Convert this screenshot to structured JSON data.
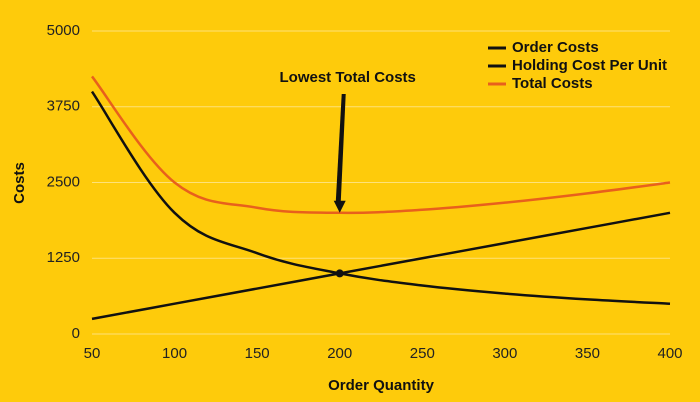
{
  "chart_data": {
    "type": "line",
    "x_label": "Order Quantity",
    "y_label": "Costs",
    "annotation": "Lowest Total Costs",
    "x": [
      50,
      100,
      150,
      200,
      250,
      300,
      350,
      400
    ],
    "series": [
      {
        "name": "Order Costs",
        "color": "#111111",
        "values": [
          4000,
          2000,
          1333,
          1000,
          800,
          667,
          571,
          500
        ]
      },
      {
        "name": "Holding Cost Per Unit",
        "color": "#111111",
        "values": [
          250,
          500,
          750,
          1000,
          1250,
          1500,
          1750,
          2000
        ]
      },
      {
        "name": "Total Costs",
        "color": "#e8601c",
        "values": [
          4250,
          2500,
          2083,
          2000,
          2050,
          2167,
          2321,
          2500
        ]
      }
    ],
    "xlim": [
      50,
      400
    ],
    "xticks": [
      50,
      100,
      150,
      200,
      250,
      300,
      350,
      400
    ],
    "ylim": [
      0,
      5000
    ],
    "yticks": [
      0,
      1250,
      2500,
      3750,
      5000
    ],
    "grid": true,
    "legend": "upper right"
  }
}
